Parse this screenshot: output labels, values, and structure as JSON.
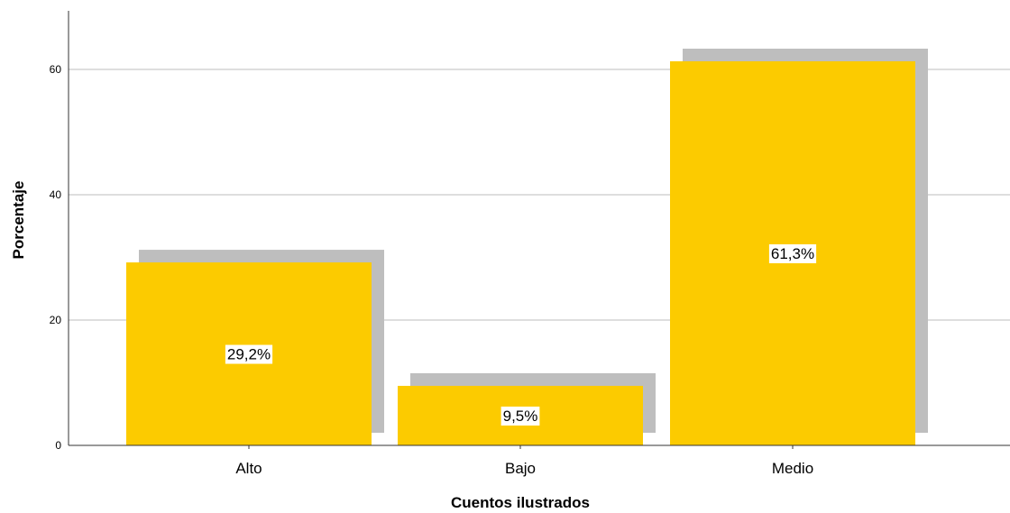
{
  "chart_data": {
    "type": "bar",
    "categories": [
      "Alto",
      "Bajo",
      "Medio"
    ],
    "values": [
      29.2,
      9.5,
      61.3
    ],
    "data_labels": [
      "29,2%",
      "9,5%",
      "61,3%"
    ],
    "xlabel": "Cuentos ilustrados",
    "ylabel": "Porcentaje",
    "ylim": [
      0,
      69
    ],
    "yticks": [
      0,
      20,
      40,
      60
    ],
    "grid": true,
    "bar_color": "#FCCB00",
    "shadow_color": "#BEBEBE",
    "legend": "none"
  }
}
